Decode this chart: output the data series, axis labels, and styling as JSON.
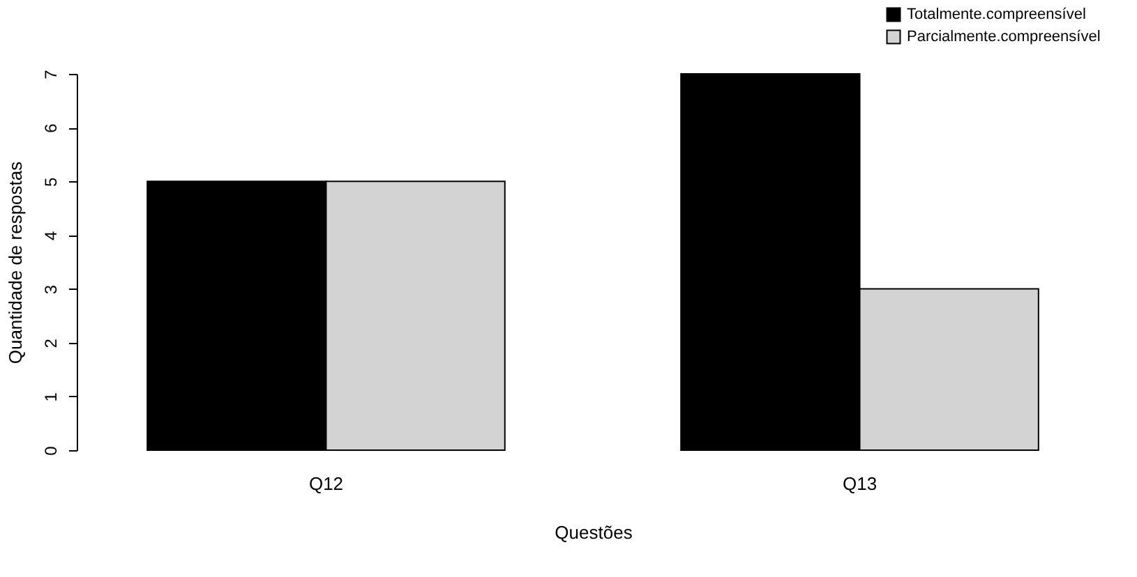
{
  "chart_data": {
    "type": "bar",
    "xlabel": "Questões",
    "ylabel": "Quantidade de respostas",
    "categories": [
      "Q12",
      "Q13"
    ],
    "series": [
      {
        "name": "Totalmente.compreensível",
        "color": "#000000",
        "values": [
          5,
          7
        ]
      },
      {
        "name": "Parcialmente.compreensível",
        "color": "#d3d3d3",
        "values": [
          5,
          3
        ]
      }
    ],
    "ylim": [
      0,
      7
    ],
    "yticks": [
      0,
      1,
      2,
      3,
      4,
      5,
      6,
      7
    ],
    "grid": false,
    "legend": "top right"
  }
}
